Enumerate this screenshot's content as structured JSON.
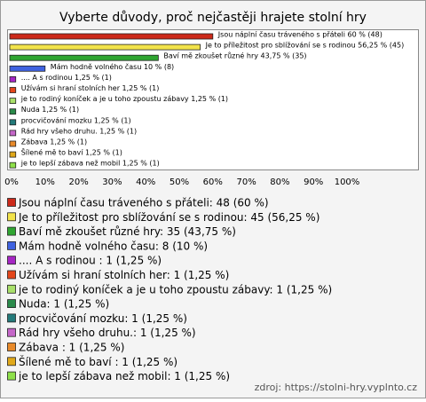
{
  "chart_data": {
    "type": "barh",
    "title": "Vyberte důvody, proč nejčastěji hrajete stolní hry",
    "values": [
      60,
      56.25,
      43.75,
      10,
      1.25,
      1.25,
      1.25,
      1.25,
      1.25,
      1.25,
      1.25,
      1.25,
      1.25
    ],
    "value_labels": [
      "Jsou náplní času tráveného s přáteli 60 % (48)",
      "Je to příležitost pro sblížování se s rodinou 56,25 % (45)",
      "Baví mě zkoušet různé hry 43,75 % (35)",
      "Mám hodně volného času 10 % (8)",
      ".... A s rodinou 1,25 % (1)",
      "Užívám si hraní stolních her 1,25 % (1)",
      "je to rodiný koníček a je u toho zpoustu zábavy 1,25 % (1)",
      "Nuda 1,25 % (1)",
      "procvičování mozku 1,25 % (1)",
      "Rád hry všeho druhu. 1,25 % (1)",
      "Zábava  1,25 % (1)",
      "Šílené mě to baví  1,25 % (1)",
      "je to lepší zábava než mobil 1,25 % (1)"
    ],
    "legend_labels": [
      "Jsou náplní času tráveného s přáteli: 48 (60 %)",
      "Je to příležitost pro sblížování se s rodinou: 45 (56,25 %)",
      "Baví mě zkoušet různé hry: 35 (43,75 %)",
      "Mám hodně volného času: 8 (10 %)",
      ".... A s rodinou : 1 (1,25 %)",
      "Užívám si hraní stolních her: 1 (1,25 %)",
      "je to rodiný koníček a je u toho zpoustu zábavy: 1 (1,25 %)",
      "Nuda: 1 (1,25 %)",
      "procvičování mozku: 1 (1,25 %)",
      "Rád hry všeho druhu.: 1 (1,25 %)",
      "Zábava : 1 (1,25 %)",
      "Šílené mě to baví : 1 (1,25 %)",
      "je to lepší zábava než mobil: 1 (1,25 %)"
    ],
    "colors": [
      "#cc2a1a",
      "#f2e34a",
      "#2fa531",
      "#3f62e0",
      "#a626c4",
      "#e4461a",
      "#a9e06a",
      "#2a8a4a",
      "#237a7a",
      "#c466c8",
      "#e88a2a",
      "#e0a81a",
      "#8ee04a"
    ],
    "xlim": [
      0,
      100
    ],
    "xticks": [
      {
        "value": 0,
        "label": "0%"
      },
      {
        "value": 10,
        "label": "10%"
      },
      {
        "value": 20,
        "label": "20%"
      },
      {
        "value": 30,
        "label": "30%"
      },
      {
        "value": 40,
        "label": "40%"
      },
      {
        "value": 50,
        "label": "50%"
      },
      {
        "value": 60,
        "label": "60%"
      },
      {
        "value": 70,
        "label": "70%"
      },
      {
        "value": 80,
        "label": "80%"
      },
      {
        "value": 90,
        "label": "90%"
      },
      {
        "value": 100,
        "label": "100%"
      }
    ],
    "grid": false,
    "source": "zdroj: https://stolni-hry.vyplnto.cz"
  }
}
